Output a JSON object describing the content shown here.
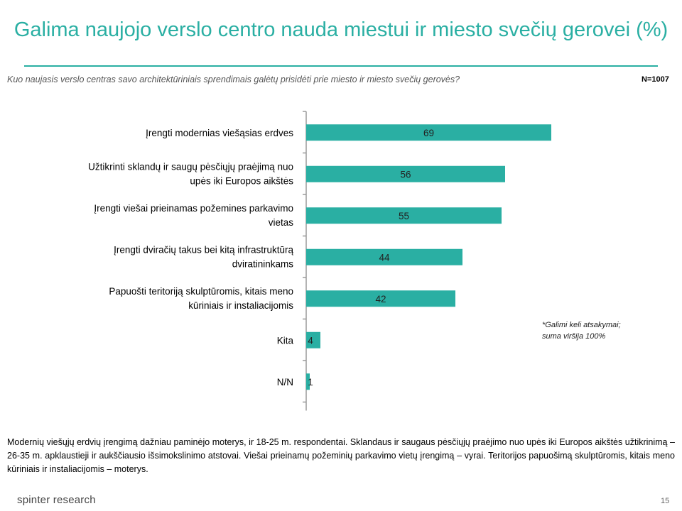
{
  "title": "Galima naujojo verslo centro nauda miestui ir miesto svečių gerovei (%)",
  "question": "Kuo naujasis verslo centras savo architektūriniais sprendimais galėtų prisidėti prie miesto ir miesto svečių gerovės?",
  "sample": "N=1007",
  "note": {
    "line1": "*Galimi keli atsakymai;",
    "line2": "suma viršija 100%"
  },
  "summary": "Modernių viešųjų erdvių įrengimą dažniau paminėjo moterys, ir 18-25 m. respondentai. Sklandaus ir saugaus pėsčiųjų praėjimo nuo upės iki Europos aikštės užtikrinimą – 26-35 m. apklaustieji ir aukščiausio išsimokslinimo atstovai. Viešai prieinamų požeminių parkavimo vietų įrengimą – vyrai. Teritorijos papuošimą skulptūromis, kitais meno kūriniais ir instaliacijomis – moterys.",
  "logo": "spinter research",
  "page_number": "15",
  "colors": {
    "accent": "#2aafa3",
    "bar": "#2aafa3"
  },
  "chart_data": {
    "type": "bar",
    "orientation": "horizontal",
    "categories": [
      [
        "Įrengti modernias viešąsias erdves"
      ],
      [
        "Užtikrinti sklandų ir saugų pėsčiųjų praėjimą nuo",
        "upės iki Europos aikštės"
      ],
      [
        "Įrengti viešai prieinamas požemines parkavimo",
        "vietas"
      ],
      [
        "Įrengti dviračių takus bei kitą infrastruktūrą",
        "dviratininkams"
      ],
      [
        "Papuošti teritoriją skulptūromis, kitais meno",
        "kūriniais ir instaliacijomis"
      ],
      [
        "Kita"
      ],
      [
        "N/N"
      ]
    ],
    "values": [
      69,
      56,
      55,
      44,
      42,
      4,
      1
    ],
    "xlim": [
      0,
      100
    ],
    "grid": false,
    "legend": "none"
  }
}
